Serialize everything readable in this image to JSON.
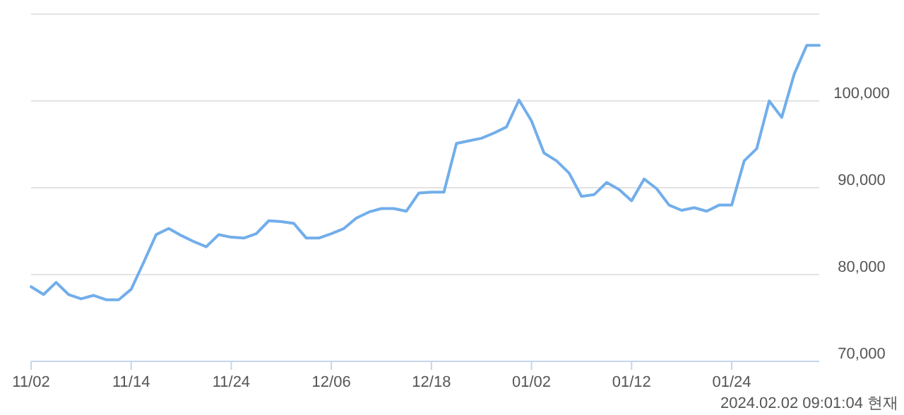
{
  "chart_data": {
    "type": "line",
    "categories": [
      "11/02",
      null,
      null,
      null,
      null,
      null,
      null,
      null,
      "11/14",
      null,
      null,
      null,
      null,
      null,
      null,
      null,
      "11/24",
      null,
      null,
      null,
      null,
      null,
      null,
      null,
      "12/06",
      null,
      null,
      null,
      null,
      null,
      null,
      null,
      "12/18",
      null,
      null,
      null,
      null,
      null,
      null,
      null,
      "01/02",
      null,
      null,
      null,
      null,
      null,
      null,
      null,
      "01/12",
      null,
      null,
      null,
      null,
      null,
      null,
      null,
      "01/24",
      null,
      null,
      null,
      null,
      null,
      null,
      null
    ],
    "series": [
      {
        "color": "#72aeea",
        "values": [
          78600,
          77700,
          79100,
          77700,
          77200,
          77600,
          77100,
          77100,
          78300,
          81400,
          84600,
          85300,
          84500,
          83800,
          83200,
          84600,
          84300,
          84200,
          84700,
          86200,
          86100,
          85900,
          84200,
          84200,
          84700,
          85300,
          86500,
          87200,
          87600,
          87600,
          87300,
          89400,
          89500,
          89500,
          95100,
          95400,
          95700,
          96300,
          97000,
          100100,
          97700,
          94000,
          93100,
          91700,
          89000,
          89200,
          90600,
          89800,
          88500,
          91000,
          89900,
          88000,
          87400,
          87700,
          87300,
          88000,
          88000,
          93100,
          94500,
          100000,
          98100,
          103100,
          106400,
          106400
        ]
      }
    ],
    "ylim": [
      70000,
      110000
    ],
    "yticks": [
      {
        "value": 70000,
        "label": "70,000"
      },
      {
        "value": 80000,
        "label": "80,000"
      },
      {
        "value": 90000,
        "label": "90,000"
      },
      {
        "value": 100000,
        "label": "100,000"
      },
      {
        "value": 110000,
        "label": null
      }
    ],
    "grid": "y",
    "marker": "none",
    "line_style": "solid",
    "annotations": [
      "2024.02.02 09:01:04 현재"
    ]
  }
}
